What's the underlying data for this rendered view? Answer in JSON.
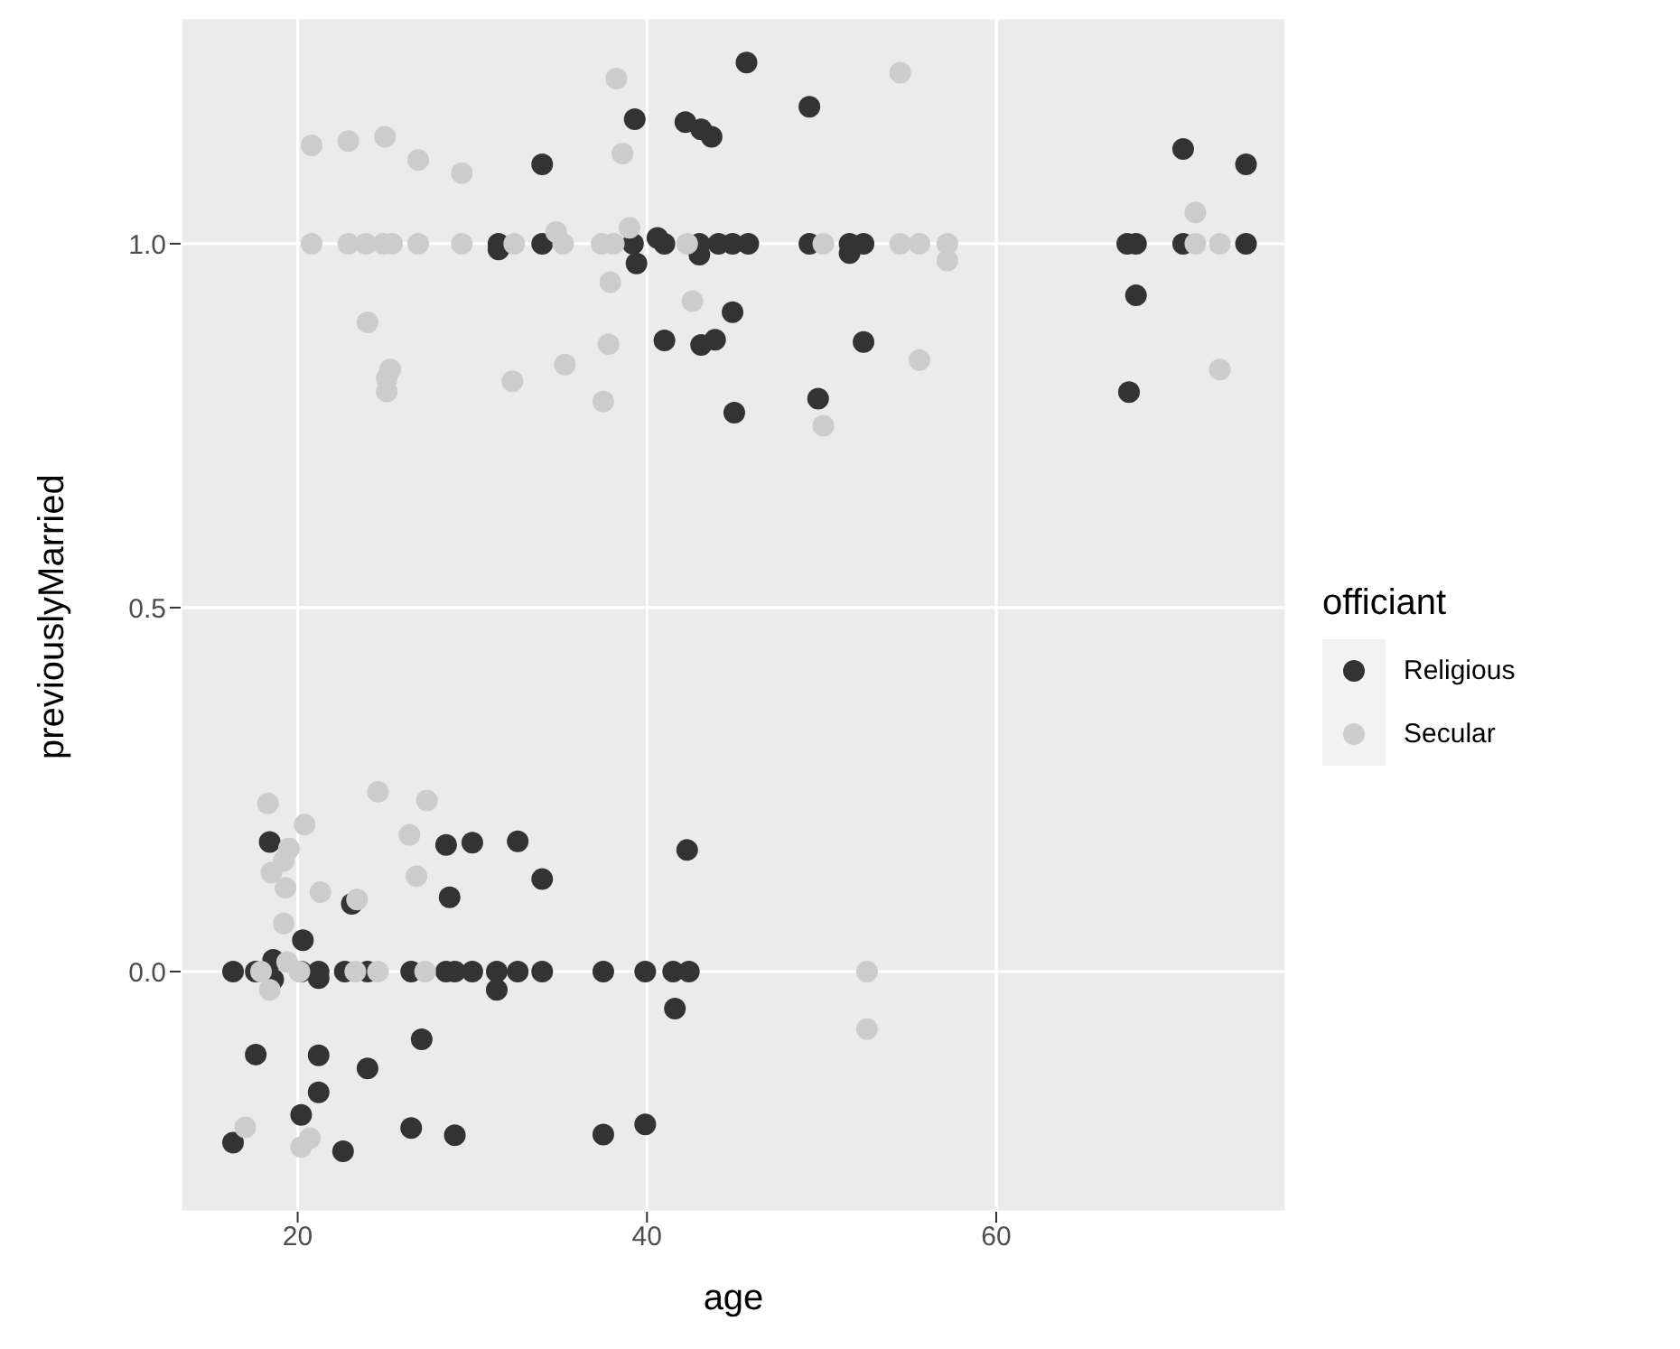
{
  "chart_data": {
    "type": "scatter",
    "xlabel": "age",
    "ylabel": "previouslyMarried",
    "legend_title": "officiant",
    "xlim": [
      13.3,
      76.6
    ],
    "ylim": [
      -0.33,
      1.31
    ],
    "xticks": [
      20,
      40,
      60
    ],
    "yticks": [
      {
        "value": 0,
        "label": "0.0"
      },
      {
        "value": 0.5,
        "label": "0.5"
      },
      {
        "value": 1,
        "label": "1.0"
      }
    ],
    "grid": true,
    "legend": "right",
    "marker": "circle",
    "series": [
      {
        "name": "Religious",
        "color": "#333333",
        "x": [
          45.7,
          39.3,
          42.2,
          43.1,
          43.7,
          34.0,
          31.5,
          31.5,
          34.0,
          39.2,
          39.4,
          40.6,
          41.0,
          43.0,
          43.0,
          44.1,
          44.9,
          45.8,
          44.9,
          41.0,
          43.1,
          43.9,
          45.0,
          49.3,
          49.3,
          51.6,
          52.4,
          51.6,
          52.4,
          49.8,
          70.7,
          74.3,
          67.5,
          68.0,
          70.7,
          74.3,
          68.0,
          67.6,
          18.4,
          28.5,
          30.0,
          32.6,
          42.3,
          34.0,
          28.7,
          23.1,
          20.3,
          18.6,
          16.3,
          17.6,
          18.6,
          20.2,
          21.2,
          21.2,
          22.7,
          24.0,
          26.5,
          28.5,
          29.0,
          30.0,
          31.4,
          32.6,
          34.0,
          37.5,
          39.9,
          41.5,
          42.4,
          31.4,
          41.6,
          27.1,
          17.6,
          21.2,
          24.0,
          21.2,
          20.2,
          16.3,
          22.6,
          26.5,
          29.0,
          37.5,
          39.9
        ],
        "values": [
          1.249,
          1.171,
          1.167,
          1.157,
          1.147,
          1.109,
          1.0,
          0.992,
          1.0,
          1.0,
          0.973,
          1.008,
          1.0,
          1.0,
          0.985,
          1.0,
          1.0,
          1.0,
          0.906,
          0.867,
          0.861,
          0.868,
          0.768,
          1.188,
          1.0,
          1.0,
          1.0,
          0.987,
          0.865,
          0.787,
          1.13,
          1.109,
          1.0,
          1.0,
          1.0,
          1.0,
          0.929,
          0.796,
          0.178,
          0.174,
          0.177,
          0.179,
          0.167,
          0.127,
          0.102,
          0.093,
          0.043,
          0.016,
          0.0,
          0.0,
          -0.011,
          0.0,
          0.0,
          -0.009,
          0.0,
          0.0,
          0.0,
          0.0,
          0.0,
          0.0,
          0.0,
          0.0,
          0.0,
          0.0,
          0.0,
          0.0,
          0.0,
          -0.025,
          -0.051,
          -0.093,
          -0.114,
          -0.115,
          -0.133,
          -0.166,
          -0.197,
          -0.235,
          -0.247,
          -0.215,
          -0.225,
          -0.224,
          -0.21
        ]
      },
      {
        "name": "Secular",
        "color": "#cccccc",
        "x": [
          38.25,
          20.8,
          22.9,
          25.0,
          26.9,
          29.4,
          38.6,
          20.8,
          22.9,
          23.9,
          24.9,
          25.4,
          26.9,
          29.4,
          32.4,
          34.8,
          35.2,
          37.4,
          38.1,
          39.0,
          42.3,
          37.9,
          42.6,
          24.0,
          25.3,
          25.1,
          25.1,
          32.3,
          35.3,
          37.8,
          37.5,
          54.5,
          50.1,
          54.5,
          55.6,
          57.2,
          57.2,
          55.6,
          50.1,
          71.4,
          71.4,
          72.8,
          72.8,
          18.3,
          20.4,
          19.5,
          19.2,
          18.5,
          19.3,
          21.3,
          19.2,
          24.6,
          27.4,
          26.4,
          26.8,
          23.4,
          17.9,
          19.4,
          20.1,
          23.3,
          24.6,
          27.3,
          18.4,
          17.0,
          20.7,
          20.2,
          52.6,
          52.6
        ],
        "values": [
          1.227,
          1.135,
          1.141,
          1.147,
          1.115,
          1.097,
          1.124,
          1.0,
          1.0,
          1.0,
          1.0,
          1.0,
          1.0,
          1.0,
          1.0,
          1.016,
          1.0,
          1.0,
          1.0,
          1.022,
          1.0,
          0.947,
          0.921,
          0.892,
          0.827,
          0.815,
          0.797,
          0.811,
          0.834,
          0.862,
          0.783,
          1.235,
          1.0,
          1.0,
          1.0,
          1.0,
          0.977,
          0.84,
          0.75,
          1.043,
          1.0,
          1.0,
          0.827,
          0.231,
          0.202,
          0.169,
          0.152,
          0.136,
          0.115,
          0.109,
          0.066,
          0.247,
          0.235,
          0.188,
          0.131,
          0.099,
          0.0,
          0.013,
          0.0,
          0.0,
          0.0,
          0.0,
          -0.025,
          -0.214,
          -0.229,
          -0.241,
          0.0,
          -0.079
        ]
      }
    ]
  }
}
